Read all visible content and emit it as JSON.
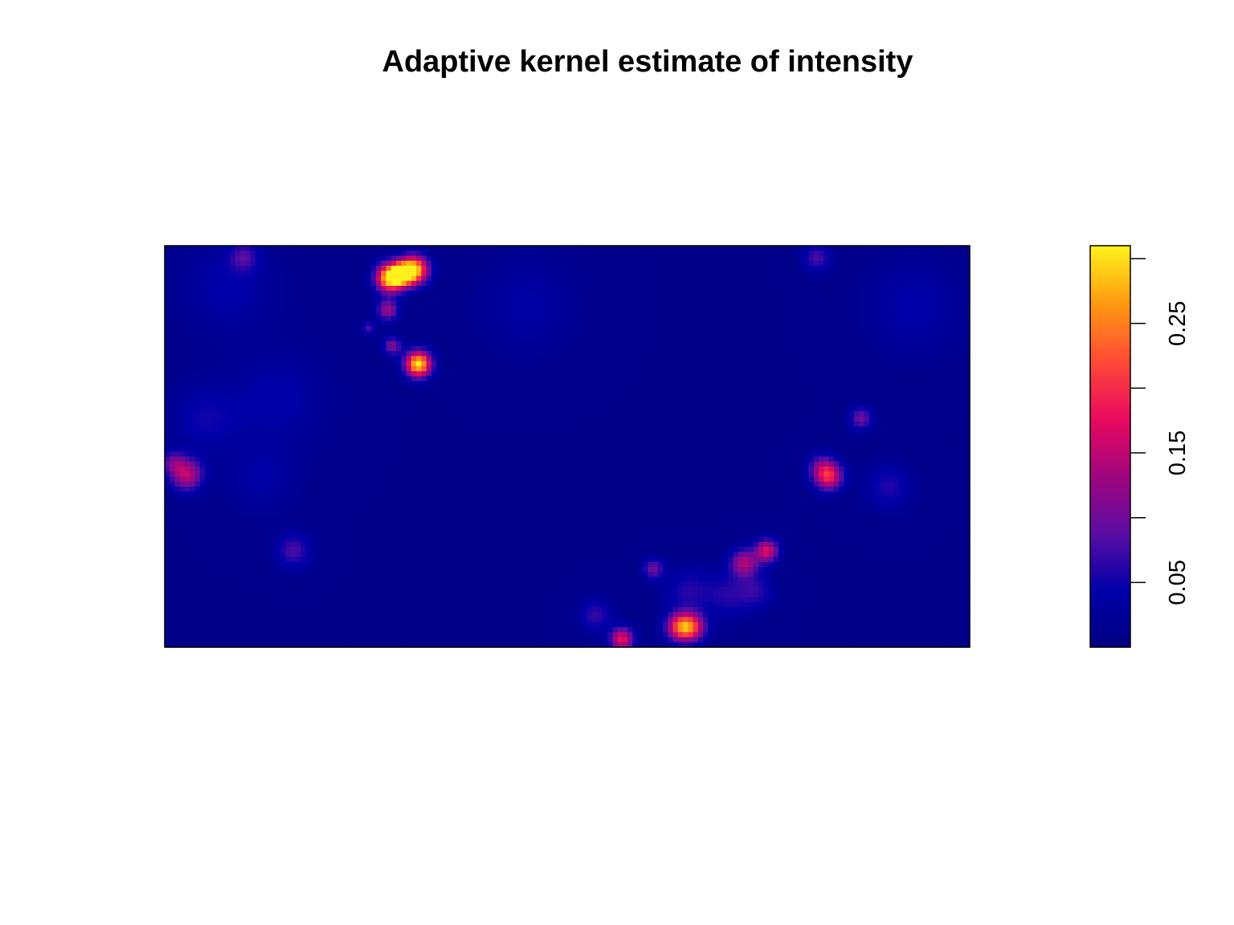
{
  "chart_data": {
    "type": "heatmap",
    "title": "Adaptive kernel estimate of intensity",
    "xlabel": "",
    "ylabel": "",
    "axes_shown": false,
    "colorbar": {
      "position": "right",
      "range": [
        0,
        0.31
      ],
      "ticks": [
        0.05,
        0.1,
        0.15,
        0.2,
        0.25,
        0.3
      ],
      "tick_labels": [
        "0.05",
        "",
        "0.15",
        "",
        "0.25",
        ""
      ],
      "colors": [
        "#000080",
        "#0000AA",
        "#5B0DA3",
        "#A1057F",
        "#E90A5E",
        "#FF4A36",
        "#FF9A10",
        "#FFF21C"
      ]
    },
    "background_intensity": 0.01,
    "field_unit_range": {
      "x": [
        0,
        1
      ],
      "y": [
        0,
        1
      ]
    },
    "hotspots": [
      {
        "x": 0.28,
        "y": 0.92,
        "value": 0.3,
        "spread": 0.012
      },
      {
        "x": 0.31,
        "y": 0.94,
        "value": 0.28,
        "spread": 0.012
      },
      {
        "x": 0.295,
        "y": 0.93,
        "value": 0.22,
        "spread": 0.01
      },
      {
        "x": 0.277,
        "y": 0.84,
        "value": 0.12,
        "spread": 0.009
      },
      {
        "x": 0.283,
        "y": 0.75,
        "value": 0.1,
        "spread": 0.008
      },
      {
        "x": 0.253,
        "y": 0.795,
        "value": 0.07,
        "spread": 0.006
      },
      {
        "x": 0.315,
        "y": 0.705,
        "value": 0.3,
        "spread": 0.011
      },
      {
        "x": 0.027,
        "y": 0.43,
        "value": 0.14,
        "spread": 0.014
      },
      {
        "x": 0.01,
        "y": 0.46,
        "value": 0.07,
        "spread": 0.01
      },
      {
        "x": 0.825,
        "y": 0.425,
        "value": 0.17,
        "spread": 0.012
      },
      {
        "x": 0.815,
        "y": 0.45,
        "value": 0.07,
        "spread": 0.012
      },
      {
        "x": 0.865,
        "y": 0.57,
        "value": 0.09,
        "spread": 0.01
      },
      {
        "x": 0.9,
        "y": 0.4,
        "value": 0.05,
        "spread": 0.02
      },
      {
        "x": 0.16,
        "y": 0.24,
        "value": 0.07,
        "spread": 0.015
      },
      {
        "x": 0.098,
        "y": 0.972,
        "value": 0.06,
        "spread": 0.012
      },
      {
        "x": 0.81,
        "y": 0.97,
        "value": 0.07,
        "spread": 0.012
      },
      {
        "x": 0.748,
        "y": 0.24,
        "value": 0.16,
        "spread": 0.01
      },
      {
        "x": 0.72,
        "y": 0.21,
        "value": 0.13,
        "spread": 0.012
      },
      {
        "x": 0.607,
        "y": 0.195,
        "value": 0.09,
        "spread": 0.009
      },
      {
        "x": 0.65,
        "y": 0.14,
        "value": 0.05,
        "spread": 0.02
      },
      {
        "x": 0.7,
        "y": 0.13,
        "value": 0.05,
        "spread": 0.02
      },
      {
        "x": 0.735,
        "y": 0.14,
        "value": 0.05,
        "spread": 0.015
      },
      {
        "x": 0.535,
        "y": 0.08,
        "value": 0.06,
        "spread": 0.014
      },
      {
        "x": 0.64,
        "y": 0.05,
        "value": 0.18,
        "spread": 0.012
      },
      {
        "x": 0.655,
        "y": 0.05,
        "value": 0.16,
        "spread": 0.012
      },
      {
        "x": 0.568,
        "y": 0.02,
        "value": 0.17,
        "spread": 0.01
      },
      {
        "x": 0.05,
        "y": 0.57,
        "value": 0.04,
        "spread": 0.03
      },
      {
        "x": 0.14,
        "y": 0.62,
        "value": 0.035,
        "spread": 0.04
      },
      {
        "x": 0.08,
        "y": 0.9,
        "value": 0.035,
        "spread": 0.04
      },
      {
        "x": 0.93,
        "y": 0.85,
        "value": 0.035,
        "spread": 0.04
      },
      {
        "x": 0.45,
        "y": 0.85,
        "value": 0.03,
        "spread": 0.04
      },
      {
        "x": 0.12,
        "y": 0.42,
        "value": 0.03,
        "spread": 0.03
      }
    ]
  }
}
